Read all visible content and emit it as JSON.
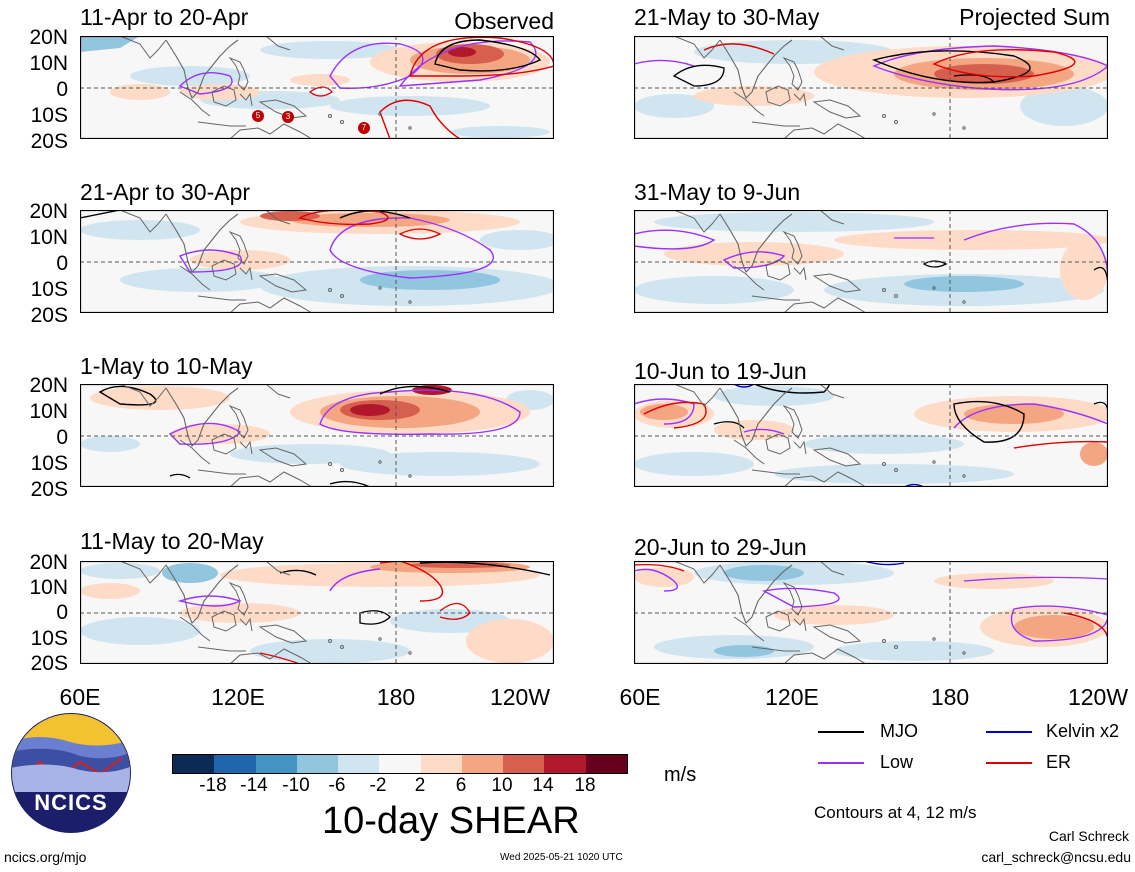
{
  "panels": [
    {
      "title": "11-Apr to 20-Apr",
      "note": "Observed"
    },
    {
      "title": "21-Apr to 30-Apr",
      "note": ""
    },
    {
      "title": "1-May to 10-May",
      "note": ""
    },
    {
      "title": "11-May to 20-May",
      "note": ""
    },
    {
      "title": "21-May to 30-May",
      "note": "Projected Sum"
    },
    {
      "title": "31-May to 9-Jun",
      "note": ""
    },
    {
      "title": "10-Jun to 19-Jun",
      "note": ""
    },
    {
      "title": "20-Jun to 29-Jun",
      "note": ""
    }
  ],
  "lat_labels": [
    "20N",
    "10N",
    "0",
    "10S",
    "20S"
  ],
  "lon_labels": [
    "60E",
    "120E",
    "180",
    "120W"
  ],
  "lon_labels_right": [
    "60E",
    "120E",
    "180",
    "120W"
  ],
  "colorbar": {
    "ticks": [
      "-18",
      "-14",
      "-10",
      "-6",
      "-2",
      "2",
      "6",
      "10",
      "14",
      "18"
    ],
    "colors": [
      "#0b2b55",
      "#2166ac",
      "#4393c3",
      "#92c5de",
      "#d1e5f0",
      "#f7f7f7",
      "#fddbc7",
      "#f4a582",
      "#d6604d",
      "#b2182b",
      "#67001f"
    ],
    "units": "m/s",
    "title": "10-day SHEAR"
  },
  "legend": {
    "items": [
      {
        "label": "MJO",
        "color": "#000000"
      },
      {
        "label": "Kelvin x2",
        "color": "#0000cc"
      },
      {
        "label": "Low",
        "color": "#9b30ff"
      },
      {
        "label": "ER",
        "color": "#e00000"
      }
    ],
    "contours_note": "Contours at 4, 12 m/s"
  },
  "logo": {
    "text": "NCICS"
  },
  "footer": {
    "url": "ncics.org/mjo",
    "timestamp": "Wed 2025-05-21 1020 UTC",
    "author": "Carl Schreck",
    "email": "carl_schreck@ncsu.edu"
  },
  "storm_markers": [
    "5",
    "3",
    "7"
  ]
}
